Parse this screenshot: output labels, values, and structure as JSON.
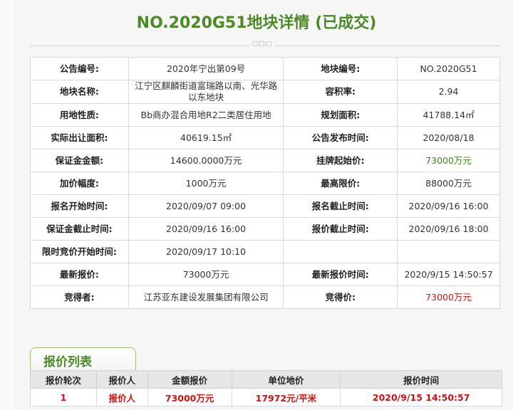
{
  "title": "NO.2020G51地块详情 (已成交)",
  "divider_mark": "□□□",
  "rows": [
    [
      "公告编号:",
      "2020年宁出第09号",
      "地块编号:",
      "NO.2020G51"
    ],
    [
      "地块名称:",
      "江宁区麒麟街道富瑞路以南、光华路以东地块",
      "容积率:",
      "2.94"
    ],
    [
      "用地性质:",
      "Bb商办混合用地R2二类居住用地",
      "规划面积:",
      "41788.14㎡"
    ],
    [
      "实际出让面积:",
      "40619.15㎡",
      "公告发布时间:",
      "2020/08/18"
    ],
    [
      "保证金金额:",
      "14600.0000万元",
      "挂牌起始价:",
      "73000万元"
    ],
    [
      "加价幅度:",
      "1000万元",
      "最高限价:",
      "88000万元"
    ],
    [
      "报名开始时间:",
      "2020/09/07 09:00",
      "报名截止时间:",
      "2020/09/16 16:00"
    ],
    [
      "保证金截止时间:",
      "2020/09/16 16:00",
      "报价截止时间:",
      "2020/09/16 18:00"
    ],
    [
      "限时竞价开始时间:",
      "2020/09/17 10:10",
      "",
      ""
    ],
    [
      "最新报价:",
      "73000万元",
      "最新报价时间:",
      "2020/9/15 14:50:57"
    ],
    [
      "竞得者:",
      "江苏亚东建设发展集团有限公司",
      "竞得价:",
      "73000万元"
    ]
  ],
  "bid_tab": "报价列表",
  "bid_headers": [
    "报价轮次",
    "报价人",
    "金额报价",
    "单位地价",
    "报价时间"
  ],
  "bid_rows": [
    [
      "1",
      "报价人",
      "73000万元",
      "17972元/平米",
      "2020/9/15 14:50:57"
    ]
  ],
  "colors": {
    "title": "#4b8a26",
    "highlight_green": "#3f7f1f",
    "highlight_red": "#d01010"
  }
}
